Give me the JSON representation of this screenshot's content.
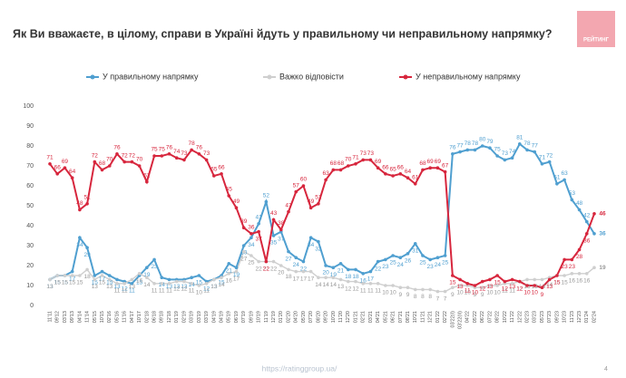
{
  "chart_data": {
    "type": "line",
    "title": "Як Ви вважаєте, в цілому, справи в Україні йдуть у правильному чи неправильному напрямку?",
    "logo": "РЕЙТИНГ",
    "footer": "https://ratinggroup.ua/",
    "page_number": "4",
    "categories": [
      "11'11",
      "09'12",
      "03'13",
      "09'13",
      "04'14",
      "11'14",
      "05'15",
      "10'15",
      "02'16",
      "05'16",
      "11'16",
      "04'17",
      "10'17",
      "02'18",
      "06'18",
      "09'18",
      "12'18",
      "01'19",
      "02'19",
      "03'19",
      "03'19",
      "03'19",
      "04'19",
      "04'19",
      "05'19",
      "06'19",
      "07'19",
      "09'19",
      "10'19",
      "11'19",
      "12'19",
      "01'20",
      "02'20",
      "04'20",
      "05'20",
      "07'20",
      "08'20",
      "09'20",
      "10'20",
      "11'20",
      "12'20",
      "01'21",
      "02'21",
      "03'21",
      "04'21",
      "05'21",
      "06'21",
      "07'21",
      "08'21",
      "10'21",
      "11'21",
      "12'21",
      "01'22",
      "02'22",
      "03'22(I)",
      "03'22(II)",
      "04'22",
      "05'22",
      "06'22",
      "07'22",
      "08'22",
      "10'22",
      "11'22",
      "12'22",
      "02'23",
      "03'23",
      "05'23",
      "07'23",
      "09'23",
      "10'23",
      "11'23",
      "12'23",
      "01'24",
      "02'24"
    ],
    "series": [
      {
        "name": "У правильному напрямку",
        "color": "#4f9fd0",
        "values": [
          13,
          15,
          15,
          17,
          34,
          29,
          15,
          17,
          15,
          13,
          12,
          11,
          15,
          19,
          23,
          14,
          13,
          13,
          13,
          14,
          15,
          12,
          13,
          15,
          21,
          19,
          30,
          34,
          41,
          52,
          35,
          37,
          27,
          24,
          22,
          34,
          32,
          20,
          19,
          21,
          18,
          18,
          16,
          17,
          22,
          23,
          25,
          24,
          26,
          31,
          25,
          23,
          24,
          25,
          76,
          77,
          78,
          78,
          80,
          79,
          75,
          73,
          74,
          81,
          78,
          77,
          71,
          72,
          61,
          63,
          53,
          48,
          42,
          36
        ]
      },
      {
        "name": "Важко відповісти",
        "color": "#cfcfcf",
        "values": [
          13,
          15,
          15,
          15,
          15,
          18,
          13,
          15,
          13,
          11,
          11,
          13,
          16,
          14,
          11,
          11,
          11,
          12,
          12,
          11,
          10,
          11,
          13,
          14,
          16,
          17,
          27,
          25,
          22,
          22,
          22,
          20,
          18,
          17,
          17,
          17,
          14,
          14,
          14,
          13,
          12,
          12,
          11,
          11,
          11,
          10,
          10,
          9,
          9,
          8,
          8,
          8,
          7,
          7,
          9,
          10,
          10,
          9,
          9,
          10,
          10,
          11,
          11,
          12,
          13,
          13,
          13,
          14,
          15,
          15,
          16,
          16,
          16,
          19
        ]
      },
      {
        "name": "У неправильному напрямку",
        "color": "#d7263d",
        "values": [
          71,
          66,
          69,
          64,
          48,
          51,
          72,
          68,
          70,
          76,
          72,
          72,
          70,
          62,
          75,
          75,
          76,
          74,
          73,
          78,
          76,
          73,
          65,
          66,
          55,
          49,
          39,
          36,
          37,
          22,
          43,
          38,
          47,
          57,
          60,
          49,
          51,
          63,
          68,
          68,
          70,
          71,
          73,
          73,
          69,
          66,
          65,
          66,
          64,
          61,
          68,
          69,
          69,
          67,
          15,
          13,
          11,
          10,
          12,
          13,
          15,
          12,
          13,
          12,
          10,
          10,
          9,
          13,
          15,
          23,
          23,
          28,
          36,
          46
        ]
      }
    ],
    "ylim": [
      0,
      100
    ],
    "yticks": [
      0,
      10,
      20,
      30,
      40,
      50,
      60,
      70,
      80,
      90,
      100
    ],
    "grid": false
  }
}
